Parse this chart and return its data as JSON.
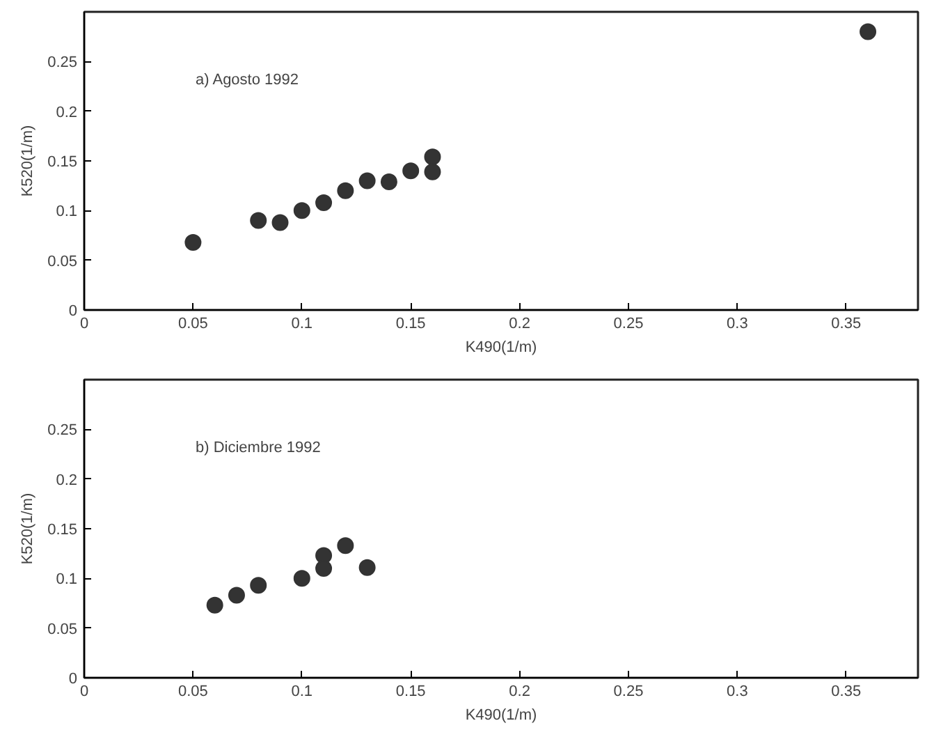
{
  "chart_data": [
    {
      "type": "scatter",
      "annotations": [
        "a) Agosto 1992"
      ],
      "xlabel": "K490(1/m)",
      "ylabel": "K520(1/m)",
      "marker": "circle",
      "grid": false,
      "xlim": [
        0,
        0.383
      ],
      "xticks": [
        0,
        0.05,
        0.1,
        0.15,
        0.2,
        0.25,
        0.3,
        0.35
      ],
      "ylim": [
        0,
        0.3
      ],
      "yticks": [
        0,
        0.05,
        0.1,
        0.15,
        0.2,
        0.25
      ],
      "series": [
        {
          "color": "#333333",
          "x": [
            0.05,
            0.08,
            0.09,
            0.1,
            0.11,
            0.12,
            0.13,
            0.14,
            0.15,
            0.16,
            0.16,
            0.36
          ],
          "values": [
            0.068,
            0.09,
            0.088,
            0.1,
            0.108,
            0.12,
            0.13,
            0.129,
            0.14,
            0.154,
            0.139,
            0.28
          ]
        }
      ]
    },
    {
      "type": "scatter",
      "annotations": [
        "b) Diciembre 1992"
      ],
      "xlabel": "K490(1/m)",
      "ylabel": "K520(1/m)",
      "marker": "circle",
      "grid": false,
      "xlim": [
        0,
        0.383
      ],
      "xticks": [
        0,
        0.05,
        0.1,
        0.15,
        0.2,
        0.25,
        0.3,
        0.35
      ],
      "ylim": [
        0,
        0.3
      ],
      "yticks": [
        0,
        0.05,
        0.1,
        0.15,
        0.2,
        0.25
      ],
      "series": [
        {
          "color": "#333333",
          "x": [
            0.06,
            0.07,
            0.08,
            0.1,
            0.11,
            0.11,
            0.12,
            0.13
          ],
          "values": [
            0.073,
            0.083,
            0.093,
            0.1,
            0.123,
            0.11,
            0.133,
            0.111
          ]
        }
      ]
    }
  ]
}
